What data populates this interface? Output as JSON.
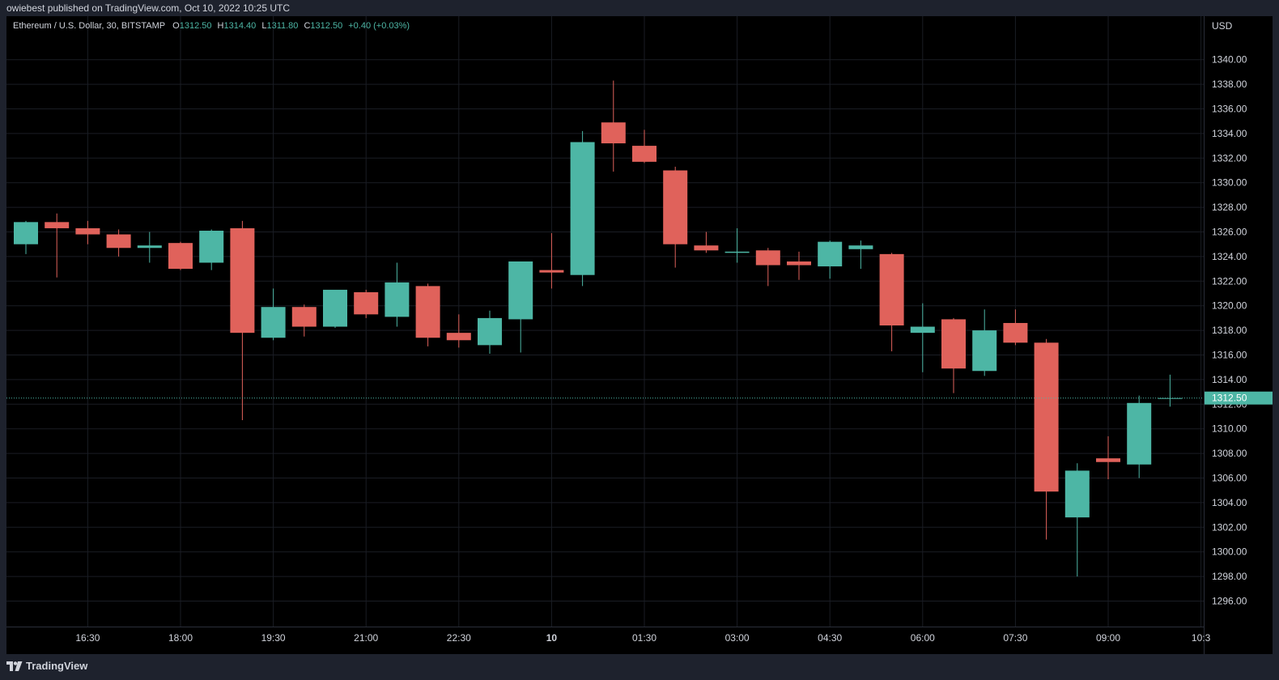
{
  "header": {
    "published_text": "owiebest published on TradingView.com, Oct 10, 2022 10:25 UTC"
  },
  "legend": {
    "symbol": "Ethereum / U.S. Dollar, 30, BITSTAMP",
    "o_label": "O",
    "o_value": "1312.50",
    "h_label": "H",
    "h_value": "1314.40",
    "l_label": "L",
    "l_value": "1311.80",
    "c_label": "C",
    "c_value": "1312.50",
    "change": "+0.40 (+0.03%)"
  },
  "footer": {
    "brand": "TradingView"
  },
  "colors": {
    "up": "#4db6a5",
    "down": "#e0625b",
    "background": "#000000",
    "frame": "#1e222d",
    "grid": "#1a1d24",
    "text": "#d1d4dc"
  },
  "chart_data": {
    "type": "candlestick",
    "currency_label": "USD",
    "interval": "30",
    "ylim": [
      1294.5,
      1343.5
    ],
    "y_ticks": [
      "1296.00",
      "1298.00",
      "1300.00",
      "1302.00",
      "1304.00",
      "1306.00",
      "1308.00",
      "1310.00",
      "1312.00",
      "1314.00",
      "1316.00",
      "1318.00",
      "1320.00",
      "1322.00",
      "1324.00",
      "1326.00",
      "1328.00",
      "1330.00",
      "1332.00",
      "1334.00",
      "1336.00",
      "1338.00",
      "1340.00"
    ],
    "x_ticks": [
      {
        "label": "16:30",
        "index": 2,
        "bold": false
      },
      {
        "label": "18:00",
        "index": 5,
        "bold": false
      },
      {
        "label": "19:30",
        "index": 8,
        "bold": false
      },
      {
        "label": "21:00",
        "index": 11,
        "bold": false
      },
      {
        "label": "22:30",
        "index": 14,
        "bold": false
      },
      {
        "label": "10",
        "index": 17,
        "bold": true
      },
      {
        "label": "01:30",
        "index": 20,
        "bold": false
      },
      {
        "label": "03:00",
        "index": 23,
        "bold": false
      },
      {
        "label": "04:30",
        "index": 26,
        "bold": false
      },
      {
        "label": "06:00",
        "index": 29,
        "bold": false
      },
      {
        "label": "07:30",
        "index": 32,
        "bold": false
      },
      {
        "label": "09:00",
        "index": 35,
        "bold": false
      },
      {
        "label": "10:3",
        "index": 38,
        "bold": false
      }
    ],
    "last_price": 1312.5,
    "last_price_label": "1312.50",
    "candles": [
      {
        "o": 1325.0,
        "h": 1326.9,
        "l": 1324.2,
        "c": 1326.8
      },
      {
        "o": 1326.8,
        "h": 1327.5,
        "l": 1322.3,
        "c": 1326.3
      },
      {
        "o": 1326.3,
        "h": 1326.9,
        "l": 1325.0,
        "c": 1325.8
      },
      {
        "o": 1325.8,
        "h": 1326.2,
        "l": 1324.0,
        "c": 1324.7
      },
      {
        "o": 1324.7,
        "h": 1326.0,
        "l": 1323.5,
        "c": 1324.9
      },
      {
        "o": 1325.1,
        "h": 1325.2,
        "l": 1322.9,
        "c": 1323.0
      },
      {
        "o": 1323.5,
        "h": 1326.2,
        "l": 1322.9,
        "c": 1326.1
      },
      {
        "o": 1326.3,
        "h": 1326.9,
        "l": 1310.7,
        "c": 1317.8
      },
      {
        "o": 1317.4,
        "h": 1321.4,
        "l": 1317.2,
        "c": 1319.9
      },
      {
        "o": 1319.9,
        "h": 1320.1,
        "l": 1317.5,
        "c": 1318.3
      },
      {
        "o": 1318.3,
        "h": 1321.3,
        "l": 1318.2,
        "c": 1321.3
      },
      {
        "o": 1321.1,
        "h": 1321.3,
        "l": 1319.0,
        "c": 1319.3
      },
      {
        "o": 1319.1,
        "h": 1323.5,
        "l": 1318.3,
        "c": 1321.9
      },
      {
        "o": 1321.6,
        "h": 1321.8,
        "l": 1316.7,
        "c": 1317.4
      },
      {
        "o": 1317.8,
        "h": 1319.3,
        "l": 1316.6,
        "c": 1317.2
      },
      {
        "o": 1316.8,
        "h": 1319.6,
        "l": 1316.1,
        "c": 1319.0
      },
      {
        "o": 1318.9,
        "h": 1323.5,
        "l": 1316.2,
        "c": 1323.6
      },
      {
        "o": 1322.9,
        "h": 1325.9,
        "l": 1321.4,
        "c": 1322.7
      },
      {
        "o": 1322.5,
        "h": 1334.2,
        "l": 1321.6,
        "c": 1333.3
      },
      {
        "o": 1334.9,
        "h": 1338.3,
        "l": 1330.9,
        "c": 1333.2
      },
      {
        "o": 1333.0,
        "h": 1334.3,
        "l": 1331.6,
        "c": 1331.7
      },
      {
        "o": 1331.0,
        "h": 1331.3,
        "l": 1323.1,
        "c": 1325.0
      },
      {
        "o": 1324.9,
        "h": 1326.0,
        "l": 1324.3,
        "c": 1324.5
      },
      {
        "o": 1324.3,
        "h": 1326.3,
        "l": 1323.5,
        "c": 1324.4
      },
      {
        "o": 1324.5,
        "h": 1324.7,
        "l": 1321.6,
        "c": 1323.3
      },
      {
        "o": 1323.6,
        "h": 1324.4,
        "l": 1322.1,
        "c": 1323.3
      },
      {
        "o": 1323.2,
        "h": 1325.3,
        "l": 1322.2,
        "c": 1325.2
      },
      {
        "o": 1324.6,
        "h": 1325.3,
        "l": 1323.0,
        "c": 1324.9
      },
      {
        "o": 1324.2,
        "h": 1324.3,
        "l": 1316.3,
        "c": 1318.4
      },
      {
        "o": 1317.8,
        "h": 1320.2,
        "l": 1314.6,
        "c": 1318.3
      },
      {
        "o": 1318.9,
        "h": 1319.0,
        "l": 1312.9,
        "c": 1314.9
      },
      {
        "o": 1314.7,
        "h": 1319.7,
        "l": 1314.3,
        "c": 1318.0
      },
      {
        "o": 1318.6,
        "h": 1319.7,
        "l": 1316.8,
        "c": 1317.0
      },
      {
        "o": 1317.0,
        "h": 1317.3,
        "l": 1301.0,
        "c": 1304.9
      },
      {
        "o": 1302.8,
        "h": 1307.2,
        "l": 1298.0,
        "c": 1306.6
      },
      {
        "o": 1307.6,
        "h": 1309.4,
        "l": 1305.9,
        "c": 1307.3
      },
      {
        "o": 1307.1,
        "h": 1312.7,
        "l": 1306.0,
        "c": 1312.1
      },
      {
        "o": 1312.5,
        "h": 1314.4,
        "l": 1311.8,
        "c": 1312.5
      }
    ]
  }
}
